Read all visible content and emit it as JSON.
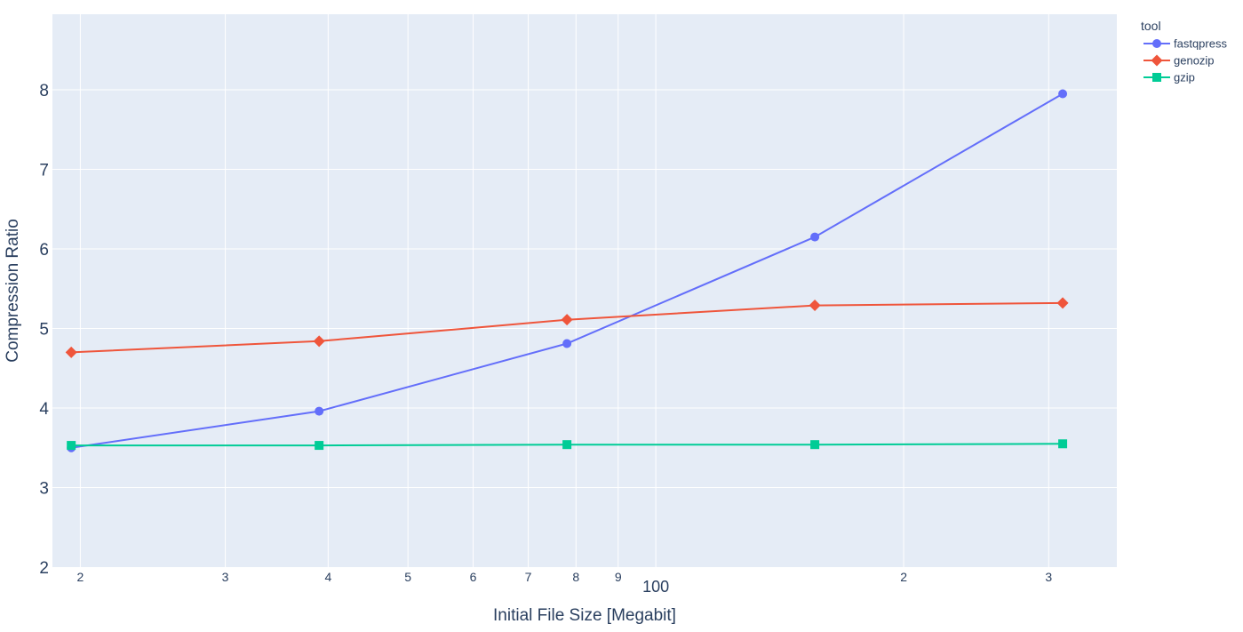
{
  "chart_data": {
    "type": "line",
    "xlabel": "Initial File Size [Megabit]",
    "ylabel": "Compression Ratio",
    "x_scale": "log",
    "xlim": [
      18.5,
      363
    ],
    "ylim": [
      2,
      8.95
    ],
    "grid": true,
    "y_ticks": [
      2,
      3,
      4,
      5,
      6,
      7,
      8
    ],
    "x_ticks": [
      {
        "value": 20,
        "label": "2"
      },
      {
        "value": 30,
        "label": "3"
      },
      {
        "value": 40,
        "label": "4"
      },
      {
        "value": 50,
        "label": "5"
      },
      {
        "value": 60,
        "label": "6"
      },
      {
        "value": 70,
        "label": "7"
      },
      {
        "value": 80,
        "label": "8"
      },
      {
        "value": 90,
        "label": "9"
      },
      {
        "value": 100,
        "label": "100"
      },
      {
        "value": 200,
        "label": "2"
      },
      {
        "value": 300,
        "label": "3"
      }
    ],
    "legend": {
      "title": "tool",
      "position": "top-right"
    },
    "series": [
      {
        "name": "fastqpress",
        "color": "#636efa",
        "marker": "circle",
        "x": [
          19.5,
          39,
          78,
          156,
          312
        ],
        "y": [
          3.5,
          3.96,
          4.81,
          6.15,
          7.95
        ]
      },
      {
        "name": "genozip",
        "color": "#ef553b",
        "marker": "diamond",
        "x": [
          19.5,
          39,
          78,
          156,
          312
        ],
        "y": [
          4.7,
          4.84,
          5.11,
          5.29,
          5.32
        ]
      },
      {
        "name": "gzip",
        "color": "#00cc96",
        "marker": "square",
        "x": [
          19.5,
          39,
          78,
          156,
          312
        ],
        "y": [
          3.53,
          3.53,
          3.54,
          3.54,
          3.55
        ]
      }
    ]
  }
}
